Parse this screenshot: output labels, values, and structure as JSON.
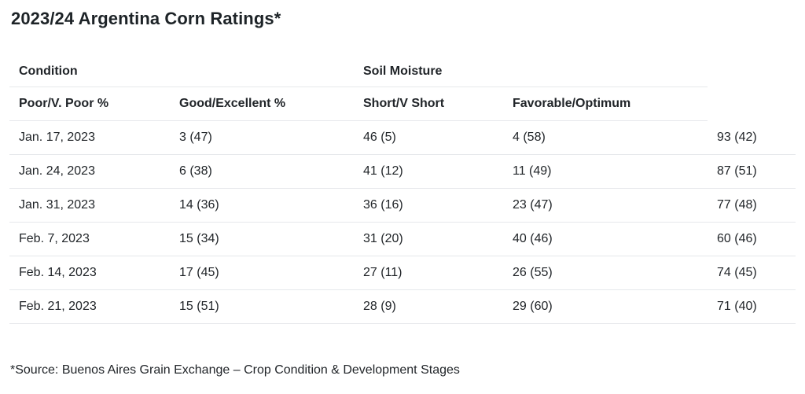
{
  "title": "2023/24 Argentina Corn Ratings*",
  "footnote": "*Source: Buenos Aires Grain Exchange – Crop Condition & Development Stages",
  "table": {
    "group_headers": [
      "Condition",
      "Soil Moisture"
    ],
    "column_headers": [
      "Poor/V. Poor %",
      "Good/Excellent %",
      "Short/V Short",
      "Favorable/Optimum",
      ""
    ],
    "rows": [
      {
        "date": "Jan. 17, 2023",
        "values": [
          "3 (47)",
          "46 (5)",
          "4 (58)",
          "93 (42)"
        ]
      },
      {
        "date": "Jan. 24, 2023",
        "values": [
          "6 (38)",
          "41 (12)",
          "11 (49)",
          "87 (51)"
        ]
      },
      {
        "date": "Jan. 31, 2023",
        "values": [
          "14 (36)",
          "36 (16)",
          "23 (47)",
          "77 (48)"
        ]
      },
      {
        "date": "Feb. 7, 2023",
        "values": [
          "15 (34)",
          "31 (20)",
          "40 (46)",
          "60 (46)"
        ]
      },
      {
        "date": "Feb. 14, 2023",
        "values": [
          "17 (45)",
          "27 (11)",
          "26 (55)",
          "74 (45)"
        ]
      },
      {
        "date": "Feb. 21, 2023",
        "values": [
          "15 (51)",
          "28 (9)",
          "29 (60)",
          "71 (40)"
        ]
      }
    ]
  },
  "colors": {
    "text": "#212529",
    "title": "#1d2327",
    "divider": "#e6e8eb",
    "background": "#ffffff"
  },
  "chart_data": {
    "type": "table",
    "title": "2023/24 Argentina Corn Ratings*",
    "group_headers": [
      {
        "label": "Condition",
        "spans": [
          "Poor/V. Poor %",
          "Good/Excellent %"
        ]
      },
      {
        "label": "Soil Moisture",
        "spans": [
          "Short/V Short",
          "Favorable/Optimum"
        ]
      }
    ],
    "columns": [
      "Poor/V. Poor %",
      "Good/Excellent %",
      "Short/V Short",
      "Favorable/Optimum",
      ""
    ],
    "rows": [
      [
        "Jan. 17, 2023",
        "3 (47)",
        "46 (5)",
        "4 (58)",
        "93 (42)"
      ],
      [
        "Jan. 24, 2023",
        "6 (38)",
        "41 (12)",
        "11 (49)",
        "87 (51)"
      ],
      [
        "Jan. 31, 2023",
        "14 (36)",
        "36 (16)",
        "23 (47)",
        "77 (48)"
      ],
      [
        "Feb. 7, 2023",
        "15 (34)",
        "31 (20)",
        "40 (46)",
        "60 (46)"
      ],
      [
        "Feb. 14, 2023",
        "17 (45)",
        "27 (11)",
        "26 (55)",
        "74 (45)"
      ],
      [
        "Feb. 21, 2023",
        "15 (51)",
        "28 (9)",
        "29 (60)",
        "71 (40)"
      ]
    ],
    "footnote": "*Source: Buenos Aires Grain Exchange – Crop Condition & Development Stages",
    "layout": {
      "grid": "horizontal-dividers-only",
      "header_divider_spans_columns": 4,
      "values_format": "current (year-ago)"
    }
  }
}
